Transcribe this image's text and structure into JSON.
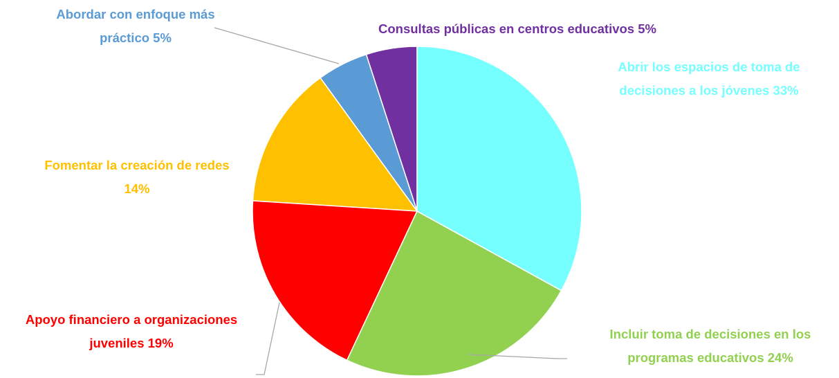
{
  "chart_data": {
    "type": "pie",
    "categories": [
      "Abrir los espacios de toma de decisiones a los jóvenes",
      "Incluir toma de decisiones en los programas educativos",
      "Apoyo financiero a organizaciones juveniles",
      "Fomentar la creación de redes",
      "Abordar con enfoque más práctico",
      "Consultas públicas en centros educativos"
    ],
    "values": [
      33,
      24,
      19,
      14,
      5,
      5
    ],
    "value_labels": [
      "33%",
      "24%",
      "19%",
      "14%",
      "5%",
      "5%"
    ],
    "colors": [
      "#75ffff",
      "#92d050",
      "#ff0000",
      "#ffc000",
      "#5b9bd5",
      "#7030a0"
    ]
  }
}
